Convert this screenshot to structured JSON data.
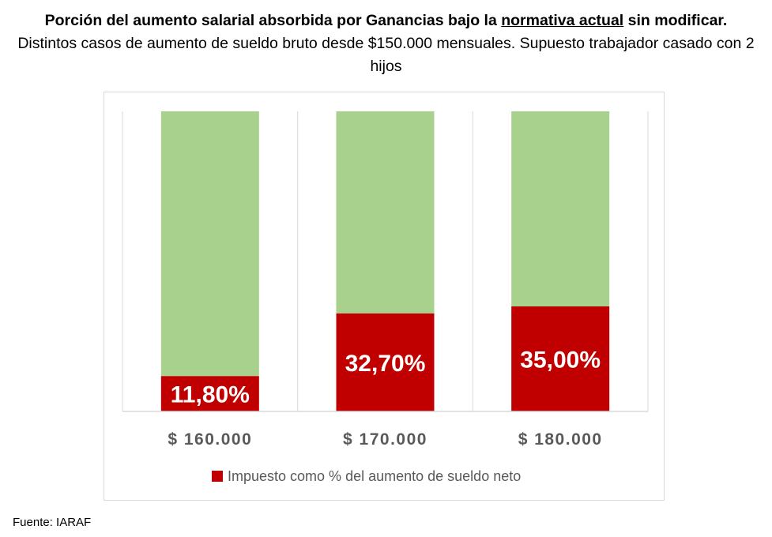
{
  "title": {
    "bold_part1": "Porción del aumento salarial absorbida por Ganancias bajo la",
    "underlined": "normativa actual",
    "bold_part2": "sin modificar.",
    "subtitle": "Distintos casos de aumento de sueldo bruto desde $150.000 mensuales. Supuesto trabajador casado con 2 hijos"
  },
  "chart_data": {
    "type": "bar",
    "stacked": true,
    "normalized_100": true,
    "categories": [
      "$ 160.000",
      "$ 170.000",
      "$ 180.000"
    ],
    "series": [
      {
        "name": "Impuesto como % del aumento de sueldo neto",
        "values": [
          11.8,
          32.7,
          35.0
        ],
        "labels": [
          "11,80%",
          "32,70%",
          "35,00%"
        ],
        "color": "#c00000"
      },
      {
        "values": [
          88.2,
          67.3,
          65.0
        ],
        "color": "#a9d18e"
      }
    ],
    "ylim": [
      0,
      100
    ],
    "grid": "vertical-separators",
    "legend_position": "bottom"
  },
  "source": "Fuente: IARAF",
  "colors": {
    "tax": "#c00000",
    "rest": "#a9d18e",
    "axis": "#d9d9d9",
    "tick_text": "#595959"
  }
}
